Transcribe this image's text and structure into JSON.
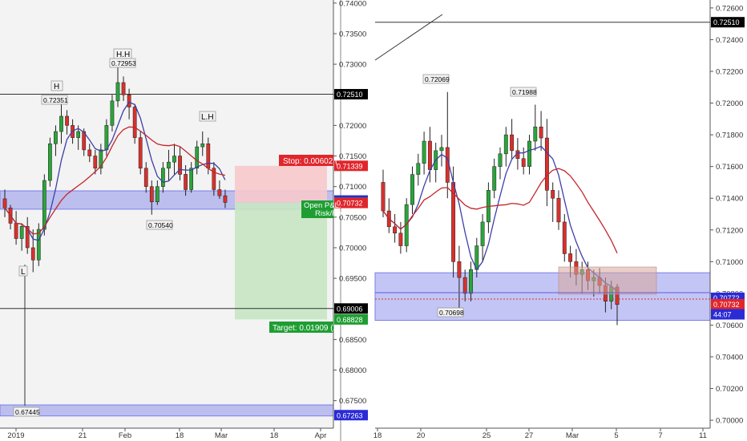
{
  "colors": {
    "up": "#2aa53a",
    "down": "#d9302c",
    "wick": "#222222",
    "ma_fast": "#3d3fa8",
    "ma_slow": "#c4262b",
    "zone": "#7b7ee8",
    "stop_fill": "#f7c9cc",
    "target_fill": "#c6e6c2",
    "stop_tag": "#e0262c",
    "target_tag": "#1e9e32",
    "line_tag": "#000000",
    "blue_tag": "#2a2ad6",
    "red_tag": "#e0262c"
  },
  "chart_data": [
    {
      "type": "candlestick",
      "title": "",
      "x_ticks": [
        "2019",
        "21",
        "Feb",
        "18",
        "Mar",
        "18",
        "Apr"
      ],
      "y_ticks": [
        "0.74000",
        "0.73500",
        "0.73000",
        "0.72500",
        "0.72000",
        "0.71500",
        "0.71000",
        "0.70500",
        "0.70000",
        "0.69500",
        "0.69000",
        "0.68500",
        "0.68000",
        "0.67500"
      ],
      "ylim": [
        0.6705,
        0.7405
      ],
      "candles": [
        [
          0.708,
          0.7095,
          0.705,
          0.7065
        ],
        [
          0.7065,
          0.707,
          0.703,
          0.704
        ],
        [
          0.704,
          0.706,
          0.7005,
          0.7015
        ],
        [
          0.7015,
          0.704,
          0.6995,
          0.7035
        ],
        [
          0.7035,
          0.705,
          0.699,
          0.7
        ],
        [
          0.7,
          0.703,
          0.696,
          0.698
        ],
        [
          0.698,
          0.704,
          0.697,
          0.703
        ],
        [
          0.703,
          0.712,
          0.702,
          0.711
        ],
        [
          0.711,
          0.718,
          0.71,
          0.717
        ],
        [
          0.717,
          0.72,
          0.715,
          0.719
        ],
        [
          0.719,
          0.7235,
          0.717,
          0.7215
        ],
        [
          0.7215,
          0.7225,
          0.7185,
          0.72
        ],
        [
          0.72,
          0.721,
          0.717,
          0.718
        ],
        [
          0.718,
          0.72,
          0.716,
          0.719
        ],
        [
          0.719,
          0.7195,
          0.715,
          0.716
        ],
        [
          0.716,
          0.717,
          0.714,
          0.715
        ],
        [
          0.715,
          0.716,
          0.712,
          0.713
        ],
        [
          0.713,
          0.717,
          0.712,
          0.716
        ],
        [
          0.716,
          0.721,
          0.715,
          0.72
        ],
        [
          0.72,
          0.725,
          0.719,
          0.724
        ],
        [
          0.724,
          0.7295,
          0.723,
          0.727
        ],
        [
          0.727,
          0.728,
          0.724,
          0.725
        ],
        [
          0.725,
          0.726,
          0.721,
          0.723
        ],
        [
          0.723,
          0.7235,
          0.717,
          0.718
        ],
        [
          0.718,
          0.719,
          0.712,
          0.713
        ],
        [
          0.713,
          0.714,
          0.709,
          0.71
        ],
        [
          0.71,
          0.711,
          0.7054,
          0.7075
        ],
        [
          0.7075,
          0.711,
          0.707,
          0.71
        ],
        [
          0.71,
          0.714,
          0.709,
          0.713
        ],
        [
          0.713,
          0.716,
          0.711,
          0.714
        ],
        [
          0.714,
          0.717,
          0.712,
          0.715
        ],
        [
          0.715,
          0.7165,
          0.711,
          0.712
        ],
        [
          0.712,
          0.7135,
          0.7085,
          0.7095
        ],
        [
          0.7095,
          0.714,
          0.709,
          0.713
        ],
        [
          0.713,
          0.7175,
          0.712,
          0.7165
        ],
        [
          0.7165,
          0.719,
          0.715,
          0.717
        ],
        [
          0.717,
          0.718,
          0.712,
          0.713
        ],
        [
          0.713,
          0.714,
          0.7085,
          0.7095
        ],
        [
          0.7095,
          0.711,
          0.708,
          0.7085
        ],
        [
          0.7085,
          0.7095,
          0.7065,
          0.7074
        ]
      ],
      "annotations": [
        {
          "label": "H",
          "value": "0.72351"
        },
        {
          "label": "H.H",
          "value": "0.72953"
        },
        {
          "label": "L.H",
          "value": ""
        },
        {
          "label": "",
          "value": "0.70540"
        },
        {
          "label": "L",
          "value": "0.67445"
        }
      ],
      "position": {
        "stop_label": "Stop: 0.00602 (",
        "target_label": "Target: 0.01909 (2.",
        "pnl_label_1": "Open P&L:",
        "pnl_label_2": "Risk/Re",
        "entry": 0.70737,
        "stop": 0.71339,
        "target": 0.68828
      },
      "price_tags": [
        {
          "value": "0.72510",
          "kind": "line"
        },
        {
          "value": "0.71339",
          "kind": "stop"
        },
        {
          "value": "0.70772",
          "kind": "blue"
        },
        {
          "value": "0.70737",
          "kind": "pnl"
        },
        {
          "value": "0.70732",
          "kind": "red"
        },
        {
          "value": "0.69006",
          "kind": "line"
        },
        {
          "value": "0.68828",
          "kind": "target"
        },
        {
          "value": "0.67263",
          "kind": "blue"
        }
      ],
      "zones": [
        [
          0.7063,
          0.7093
        ],
        [
          0.6725,
          0.6743
        ]
      ],
      "horizontal_lines": [
        0.7251,
        0.69006
      ]
    },
    {
      "type": "candlestick",
      "title": "",
      "x_ticks": [
        "18",
        "20",
        "25",
        "27",
        "Mar",
        "5",
        "7",
        "11"
      ],
      "y_ticks": [
        "0.72600",
        "0.72400",
        "0.72200",
        "0.72000",
        "0.71800",
        "0.71600",
        "0.71400",
        "0.71200",
        "0.71000",
        "0.70800",
        "0.70600",
        "0.70400",
        "0.70200",
        "0.70000"
      ],
      "ylim": [
        0.6995,
        0.7265
      ],
      "candles": [
        [
          0.715,
          0.7158,
          0.7128,
          0.7132
        ],
        [
          0.7132,
          0.714,
          0.7118,
          0.7122
        ],
        [
          0.7122,
          0.713,
          0.7112,
          0.7118
        ],
        [
          0.7118,
          0.7125,
          0.7105,
          0.711
        ],
        [
          0.711,
          0.714,
          0.7106,
          0.7136
        ],
        [
          0.7136,
          0.716,
          0.713,
          0.7155
        ],
        [
          0.7155,
          0.7168,
          0.7148,
          0.7162
        ],
        [
          0.7162,
          0.7182,
          0.7155,
          0.7176
        ],
        [
          0.7176,
          0.7185,
          0.715,
          0.7158
        ],
        [
          0.7158,
          0.7175,
          0.715,
          0.717
        ],
        [
          0.717,
          0.718,
          0.716,
          0.7172
        ],
        [
          0.7172,
          0.7207,
          0.714,
          0.715
        ],
        [
          0.715,
          0.716,
          0.709,
          0.71
        ],
        [
          0.71,
          0.711,
          0.707,
          0.709
        ],
        [
          0.709,
          0.7095,
          0.7075,
          0.708
        ],
        [
          0.708,
          0.71,
          0.7075,
          0.7095
        ],
        [
          0.7095,
          0.7115,
          0.709,
          0.711
        ],
        [
          0.711,
          0.713,
          0.71,
          0.7125
        ],
        [
          0.7125,
          0.715,
          0.7118,
          0.7145
        ],
        [
          0.7145,
          0.7165,
          0.714,
          0.716
        ],
        [
          0.716,
          0.7172,
          0.7152,
          0.7168
        ],
        [
          0.7168,
          0.7185,
          0.716,
          0.718
        ],
        [
          0.718,
          0.719,
          0.7165,
          0.717
        ],
        [
          0.717,
          0.7178,
          0.7158,
          0.7165
        ],
        [
          0.7165,
          0.7172,
          0.7155,
          0.716
        ],
        [
          0.716,
          0.718,
          0.7155,
          0.7176
        ],
        [
          0.7176,
          0.7199,
          0.717,
          0.7185
        ],
        [
          0.7185,
          0.7195,
          0.717,
          0.7178
        ],
        [
          0.7178,
          0.719,
          0.7135,
          0.7145
        ],
        [
          0.7145,
          0.715,
          0.7125,
          0.714
        ],
        [
          0.714,
          0.7145,
          0.712,
          0.7125
        ],
        [
          0.7125,
          0.713,
          0.71,
          0.7105
        ],
        [
          0.7105,
          0.711,
          0.709,
          0.71
        ],
        [
          0.71,
          0.7108,
          0.7085,
          0.7092
        ],
        [
          0.7092,
          0.71,
          0.708,
          0.7095
        ],
        [
          0.7095,
          0.71,
          0.7082,
          0.7088
        ],
        [
          0.7088,
          0.7095,
          0.7078,
          0.709
        ],
        [
          0.709,
          0.7096,
          0.708,
          0.7085
        ],
        [
          0.7085,
          0.709,
          0.7068,
          0.7075
        ],
        [
          0.7075,
          0.7088,
          0.707,
          0.7084
        ],
        [
          0.7084,
          0.7086,
          0.706,
          0.7073
        ]
      ],
      "annotations": [
        {
          "label": "",
          "value": "0.72069"
        },
        {
          "label": "",
          "value": "0.71988"
        },
        {
          "label": "",
          "value": "0.70698"
        }
      ],
      "price_tags": [
        {
          "value": "0.72510",
          "kind": "line"
        },
        {
          "value": "0.70772",
          "kind": "blue"
        },
        {
          "value": "0.70732",
          "kind": "red"
        },
        {
          "value": "44:07",
          "kind": "blue"
        }
      ],
      "zones": [
        [
          0.7063,
          0.7093
        ]
      ],
      "horizontal_lines": [
        0.7251
      ]
    }
  ]
}
